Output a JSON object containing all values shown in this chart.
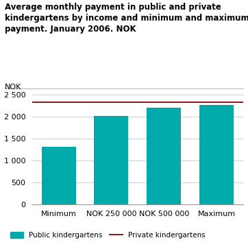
{
  "title_line1": "Average monthly payment in public and private",
  "title_line2": "kindergartens by income and minimum and maximum",
  "title_line3": "payment. January 2006. NOK",
  "ylabel": "NOK",
  "categories": [
    "Minimum",
    "NOK 250 000",
    "NOK 500 000",
    "Maximum"
  ],
  "bar_values": [
    1310,
    2020,
    2200,
    2260
  ],
  "bar_color": "#00AAAA",
  "private_line_value": 2320,
  "private_line_color": "#8B2020",
  "ylim": [
    0,
    2500
  ],
  "yticks": [
    0,
    500,
    1000,
    1500,
    2000,
    2500
  ],
  "ytick_labels": [
    "0",
    "500",
    "1 000",
    "1 500",
    "2 000",
    "2 500"
  ],
  "legend_bar_label": "Public kindergartens",
  "legend_line_label": "Private kindergartens",
  "background_color": "#ffffff",
  "grid_color": "#d0d0d0",
  "title_fontsize": 8.5,
  "axis_label_fontsize": 8,
  "tick_fontsize": 8,
  "legend_fontsize": 7.5
}
